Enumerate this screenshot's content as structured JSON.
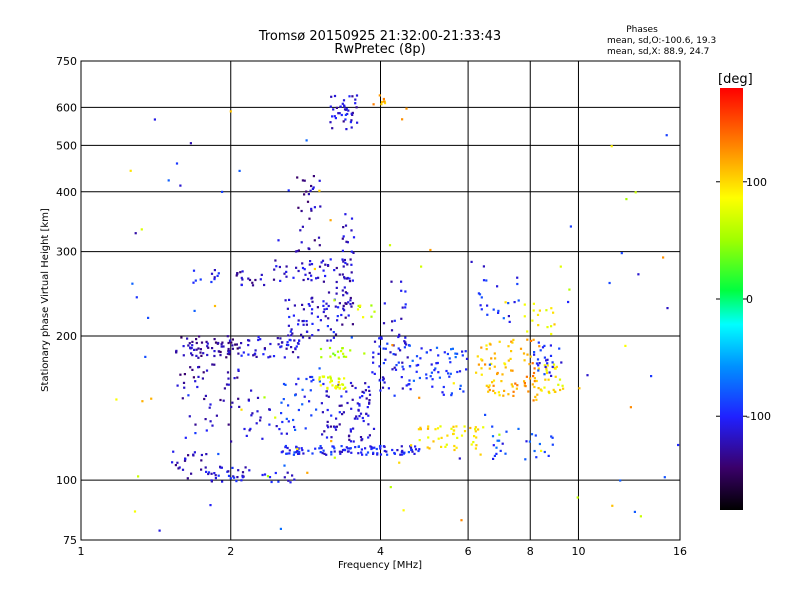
{
  "chart_data": {
    "type": "scatter",
    "title": "Tromsø 20150925 21:32:00-21:33:43",
    "subtitle": "RwPretec (8p)",
    "xlabel": "Frequency [MHz]",
    "ylabel": "Stationary phase Virtual Height [km]",
    "x_scale": "log",
    "y_scale": "log",
    "xlim": [
      1,
      16
    ],
    "ylim": [
      75,
      750
    ],
    "x_ticks": [
      1,
      2,
      4,
      6,
      8,
      10,
      16
    ],
    "x_tick_labels": [
      "1",
      "2",
      "4",
      "6",
      "8",
      "10",
      "16"
    ],
    "y_ticks": [
      75,
      100,
      200,
      300,
      400,
      500,
      600,
      750
    ],
    "y_tick_labels": [
      "75",
      "100",
      "200",
      "300",
      "400",
      "500",
      "600",
      "750"
    ],
    "grid": true,
    "phase_stats": {
      "heading": "Phases",
      "line_o": "mean, sd,O:-100.6, 19.3",
      "line_x": "mean, sd,X:  88.9, 24.7"
    },
    "colorbar": {
      "label": "[deg]",
      "range": [
        -180,
        180
      ],
      "ticks": [
        100,
        0,
        -100
      ],
      "tick_labels": [
        "100",
        "0",
        "-100"
      ],
      "colormap": "rainbow"
    },
    "clusters": [
      {
        "f": [
          1.55,
          2.1
        ],
        "h": [
          180,
          200
        ],
        "phase": -130,
        "n": 70
      },
      {
        "f": [
          2.1,
          2.75
        ],
        "h": [
          180,
          200
        ],
        "phase": -115,
        "n": 45
      },
      {
        "f": [
          2.6,
          3.3
        ],
        "h": [
          195,
          240
        ],
        "phase": -110,
        "n": 55
      },
      {
        "f": [
          2.9,
          3.5
        ],
        "h": [
          220,
          290
        ],
        "phase": -120,
        "n": 35
      },
      {
        "f": [
          2.4,
          2.95
        ],
        "h": [
          260,
          290
        ],
        "phase": -120,
        "n": 25
      },
      {
        "f": [
          2.7,
          3.05
        ],
        "h": [
          300,
          450
        ],
        "phase": -125,
        "n": 30
      },
      {
        "f": [
          3.35,
          3.55
        ],
        "h": [
          210,
          360
        ],
        "phase": -120,
        "n": 40
      },
      {
        "f": [
          3.15,
          3.6
        ],
        "h": [
          540,
          640
        ],
        "phase": -115,
        "n": 40
      },
      {
        "f": [
          3.85,
          4.1
        ],
        "h": [
          600,
          640
        ],
        "phase": 120,
        "n": 8
      },
      {
        "f": [
          1.55,
          1.8
        ],
        "h": [
          100,
          115
        ],
        "phase": -120,
        "n": 20
      },
      {
        "f": [
          1.8,
          2.2
        ],
        "h": [
          99,
          107
        ],
        "phase": -110,
        "n": 30
      },
      {
        "f": [
          2.2,
          2.7
        ],
        "h": [
          99,
          104
        ],
        "phase": -110,
        "n": 12
      },
      {
        "f": [
          2.05,
          2.35
        ],
        "h": [
          255,
          275
        ],
        "phase": -120,
        "n": 18
      },
      {
        "f": [
          1.65,
          1.9
        ],
        "h": [
          258,
          275
        ],
        "phase": -110,
        "n": 10
      },
      {
        "f": [
          1.55,
          2.2
        ],
        "h": [
          130,
          175
        ],
        "phase": -125,
        "n": 45
      },
      {
        "f": [
          2.0,
          2.5
        ],
        "h": [
          120,
          150
        ],
        "phase": -115,
        "n": 20
      },
      {
        "f": [
          2.5,
          4.8
        ],
        "h": [
          113,
          118
        ],
        "phase": -100,
        "n": 110
      },
      {
        "f": [
          3.05,
          3.9
        ],
        "h": [
          120,
          160
        ],
        "phase": -115,
        "n": 80
      },
      {
        "f": [
          2.5,
          3.05
        ],
        "h": [
          125,
          165
        ],
        "phase": -95,
        "n": 35
      },
      {
        "f": [
          3.0,
          3.4
        ],
        "h": [
          155,
          165
        ],
        "phase": 80,
        "n": 30
      },
      {
        "f": [
          3.0,
          3.5
        ],
        "h": [
          180,
          190
        ],
        "phase": 50,
        "n": 15
      },
      {
        "f": [
          3.6,
          3.9
        ],
        "h": [
          215,
          232
        ],
        "phase": 70,
        "n": 8
      },
      {
        "f": [
          3.8,
          4.6
        ],
        "h": [
          150,
          200
        ],
        "phase": -105,
        "n": 60
      },
      {
        "f": [
          4.6,
          6.0
        ],
        "h": [
          150,
          190
        ],
        "phase": -90,
        "n": 55
      },
      {
        "f": [
          4.6,
          6.3
        ],
        "h": [
          115,
          130
        ],
        "phase": 95,
        "n": 45
      },
      {
        "f": [
          6.2,
          7.4
        ],
        "h": [
          150,
          195
        ],
        "phase": 110,
        "n": 45
      },
      {
        "f": [
          7.3,
          8.4
        ],
        "h": [
          145,
          200
        ],
        "phase": 120,
        "n": 45
      },
      {
        "f": [
          8.4,
          9.4
        ],
        "h": [
          150,
          175
        ],
        "phase": 90,
        "n": 25
      },
      {
        "f": [
          8.1,
          9.3
        ],
        "h": [
          165,
          195
        ],
        "phase": -100,
        "n": 25
      },
      {
        "f": [
          6.3,
          7.7
        ],
        "h": [
          210,
          265
        ],
        "phase": -100,
        "n": 20
      },
      {
        "f": [
          7.7,
          9.0
        ],
        "h": [
          200,
          240
        ],
        "phase": 90,
        "n": 15
      },
      {
        "f": [
          6.5,
          9.0
        ],
        "h": [
          110,
          130
        ],
        "phase": -90,
        "n": 25
      },
      {
        "f": [
          4.0,
          4.5
        ],
        "h": [
          200,
          260
        ],
        "phase": -110,
        "n": 15
      },
      {
        "f": [
          1.1,
          16
        ],
        "h": [
          78,
          600
        ],
        "phase": 0,
        "n": 110,
        "scatter": true
      }
    ]
  }
}
